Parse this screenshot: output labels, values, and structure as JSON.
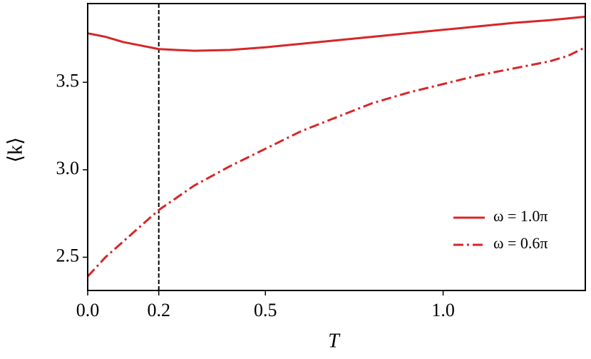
{
  "chart_data": {
    "type": "line",
    "x_label": "T",
    "y_label": "⟨k⟩",
    "x": [
      0,
      0.05,
      0.1,
      0.15,
      0.2,
      0.3,
      0.4,
      0.5,
      0.6,
      0.7,
      0.8,
      0.9,
      1.0,
      1.1,
      1.2,
      1.3,
      1.35,
      1.4
    ],
    "series": [
      {
        "name": "ω = 1.0π",
        "color": "#d62728",
        "linestyle": "solid",
        "values": [
          3.78,
          3.76,
          3.73,
          3.71,
          3.69,
          3.68,
          3.685,
          3.7,
          3.72,
          3.74,
          3.76,
          3.78,
          3.8,
          3.82,
          3.84,
          3.855,
          3.865,
          3.875
        ]
      },
      {
        "name": "ω = 0.6π",
        "color": "#d62728",
        "linestyle": "dashdot",
        "values": [
          2.39,
          2.5,
          2.59,
          2.68,
          2.77,
          2.91,
          3.02,
          3.12,
          3.22,
          3.3,
          3.38,
          3.44,
          3.49,
          3.54,
          3.58,
          3.62,
          3.65,
          3.7
        ]
      }
    ],
    "vline": 0.2,
    "xlim": [
      0,
      1.4
    ],
    "ylim": [
      2.31,
      3.95
    ],
    "xticks": [
      {
        "value": 0,
        "label": "0.0"
      },
      0.2,
      0.5,
      {
        "value": 1,
        "label": "1.0"
      }
    ],
    "yticks": [
      {
        "value": 2.5,
        "label": "2.5"
      },
      {
        "value": 3,
        "label": "3.0"
      },
      3.5
    ],
    "legend": "lower right",
    "grid": false
  }
}
